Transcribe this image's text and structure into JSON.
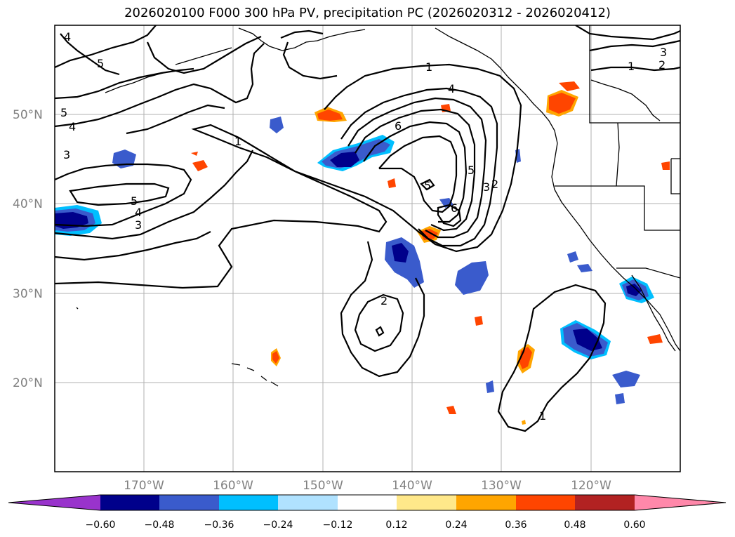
{
  "title": "2026020100 F000 300 hPa PV, precipitation PC (2026020312 - 2026020412)",
  "lat_labels": [
    "50°N",
    "40°N",
    "30°N",
    "20°N"
  ],
  "lon_labels": [
    "170°W",
    "160°W",
    "150°W",
    "140°W",
    "130°W",
    "120°W"
  ],
  "colorbar": {
    "ticks": [
      "−0.60",
      "−0.48",
      "−0.36",
      "−0.24",
      "−0.12",
      "0.12",
      "0.24",
      "0.36",
      "0.48",
      "0.60"
    ],
    "colors": [
      "#9933cc",
      "#00008b",
      "#3a5bcc",
      "#00bfff",
      "#b0e2ff",
      "#ffffff",
      "#ffe88a",
      "#ffa500",
      "#ff4500",
      "#b22222",
      "#ff88aa"
    ]
  },
  "contour_labels": {
    "c1": "1",
    "c2": "2",
    "c3": "3",
    "c4": "4",
    "c5": "5",
    "c6": "6"
  },
  "map": {
    "lat_range": [
      10,
      60
    ],
    "lon_range": [
      -180,
      -110
    ],
    "field": "300 hPa PV",
    "shading": "precipitation PC"
  }
}
